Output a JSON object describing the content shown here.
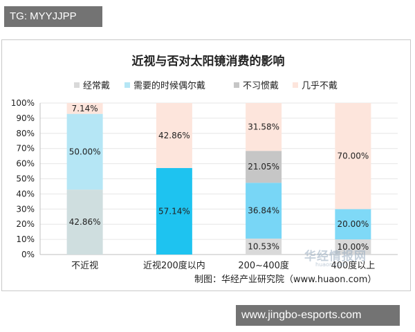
{
  "tag_banner": "TG: MYYJJPP",
  "site_banner": "www.jingbo-esports.com",
  "watermark": {
    "title": "华经情报网",
    "sub": "huaon.com"
  },
  "colors": {
    "always": "#d9d9d9",
    "sometimes": "#b5e6f5",
    "not_used": "#c6c6c6",
    "never": "#fde5dc",
    "cat1_bottom": "#cfdedf",
    "cat2_bottom": "#1ec3f0",
    "cat3_mid": "#78d6f6",
    "cat4_mid": "#7fd9f7",
    "grid": "#e6e6e6",
    "axis": "#bfbfbf",
    "text": "#222222"
  },
  "chart_data": {
    "type": "bar",
    "stacked": true,
    "title": "近视与否对太阳镜消费的影响",
    "source": "制图：华经产业研究院（www.huaon.com）",
    "legend_position": "top",
    "categories": [
      "不近视",
      "近视200度以内",
      "200~400度",
      "400度以上"
    ],
    "y_ticks": [
      "0%",
      "10%",
      "20%",
      "30%",
      "40%",
      "50%",
      "60%",
      "70%",
      "80%",
      "90%",
      "100%"
    ],
    "ylim": [
      0,
      100
    ],
    "grid": true,
    "series": [
      {
        "name": "经常戴",
        "values": [
          42.86,
          0,
          10.53,
          10.0
        ]
      },
      {
        "name": "需要的时候偶尔戴",
        "values": [
          50.0,
          57.14,
          36.84,
          20.0
        ]
      },
      {
        "name": "不习惯戴",
        "values": [
          0,
          0,
          21.05,
          0
        ]
      },
      {
        "name": "几乎不戴",
        "values": [
          7.14,
          42.86,
          31.58,
          70.0
        ]
      }
    ],
    "data_labels": [
      [
        "42.86%",
        "50.00%",
        "",
        "7.14%"
      ],
      [
        "",
        "57.14%",
        "",
        "42.86%"
      ],
      [
        "10.53%",
        "36.84%",
        "21.05%",
        "31.58%"
      ],
      [
        "10.00%",
        "20.00%",
        "",
        "70.00%"
      ]
    ]
  }
}
